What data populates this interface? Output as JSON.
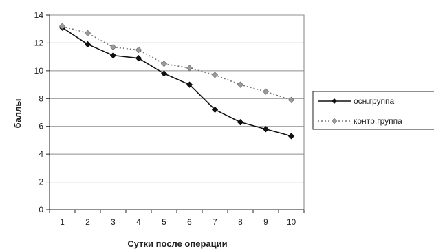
{
  "chart_data": {
    "type": "line",
    "title": "",
    "xlabel": "Сутки после операции",
    "ylabel": "баллы",
    "x": [
      1,
      2,
      3,
      4,
      5,
      6,
      7,
      8,
      9,
      10
    ],
    "ylim": [
      0,
      14
    ],
    "yticks": [
      0,
      2,
      4,
      6,
      8,
      10,
      12,
      14
    ],
    "grid": true,
    "legend_position": "right",
    "series": [
      {
        "name": "осн.группа",
        "values": [
          13.1,
          11.9,
          11.1,
          10.9,
          9.8,
          9.0,
          7.2,
          6.3,
          5.8,
          5.3
        ],
        "color": "#111111",
        "line_style": "solid",
        "marker": "diamond"
      },
      {
        "name": "контр.группа",
        "values": [
          13.2,
          12.7,
          11.7,
          11.5,
          10.5,
          10.2,
          9.7,
          9.0,
          8.5,
          7.9
        ],
        "color": "#777777",
        "line_style": "dotted",
        "marker": "diamond"
      }
    ]
  }
}
